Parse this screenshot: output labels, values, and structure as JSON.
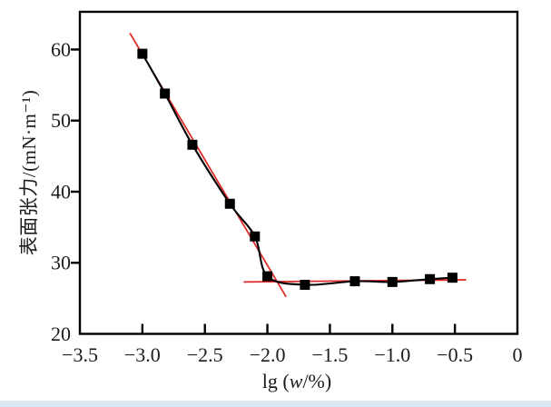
{
  "figure": {
    "background": "#ffffff",
    "edge_strip_color": "#dbe7f1"
  },
  "chart_data": {
    "type": "line",
    "title": "",
    "xlabel_parts": {
      "prefix": "lg (",
      "variable": "w",
      "suffix": "/%)"
    },
    "ylabel": "表面张力/(mN·m⁻¹)",
    "xlim": [
      -3.5,
      0
    ],
    "ylim": [
      20,
      65.3
    ],
    "x_ticks": [
      -3.5,
      -3.0,
      -2.5,
      -2.0,
      -1.5,
      -1.0,
      -0.5,
      0
    ],
    "x_tick_labels": [
      "−3.5",
      "−3.0",
      "−2.5",
      "−2.0",
      "−1.5",
      "−1.0",
      "−0.5",
      "0"
    ],
    "y_ticks": [
      20,
      30,
      40,
      50,
      60
    ],
    "y_tick_labels": [
      "20",
      "30",
      "40",
      "50",
      "60"
    ],
    "grid": false,
    "legend": null,
    "frame_color": "#000000",
    "series": [
      {
        "name": "surface tension vs lg(w/%)",
        "marker": "filled-square",
        "marker_size": 11,
        "color": "#000000",
        "x": [
          -3.0,
          -2.82,
          -2.6,
          -2.3,
          -2.1,
          -2.0,
          -1.7,
          -1.3,
          -1.0,
          -0.7,
          -0.52
        ],
        "y": [
          59.4,
          53.8,
          46.6,
          38.3,
          33.7,
          28.1,
          26.9,
          27.4,
          27.3,
          27.7,
          27.9
        ]
      }
    ],
    "tangent_lines": [
      {
        "name": "descending-tangent",
        "color": "#e12b28",
        "x1": -3.1,
        "y1": 62.3,
        "x2": -1.85,
        "y2": 25.2
      },
      {
        "name": "plateau-tangent",
        "color": "#e12b28",
        "x1": -2.19,
        "y1": 27.3,
        "x2": -0.41,
        "y2": 27.6
      }
    ]
  }
}
